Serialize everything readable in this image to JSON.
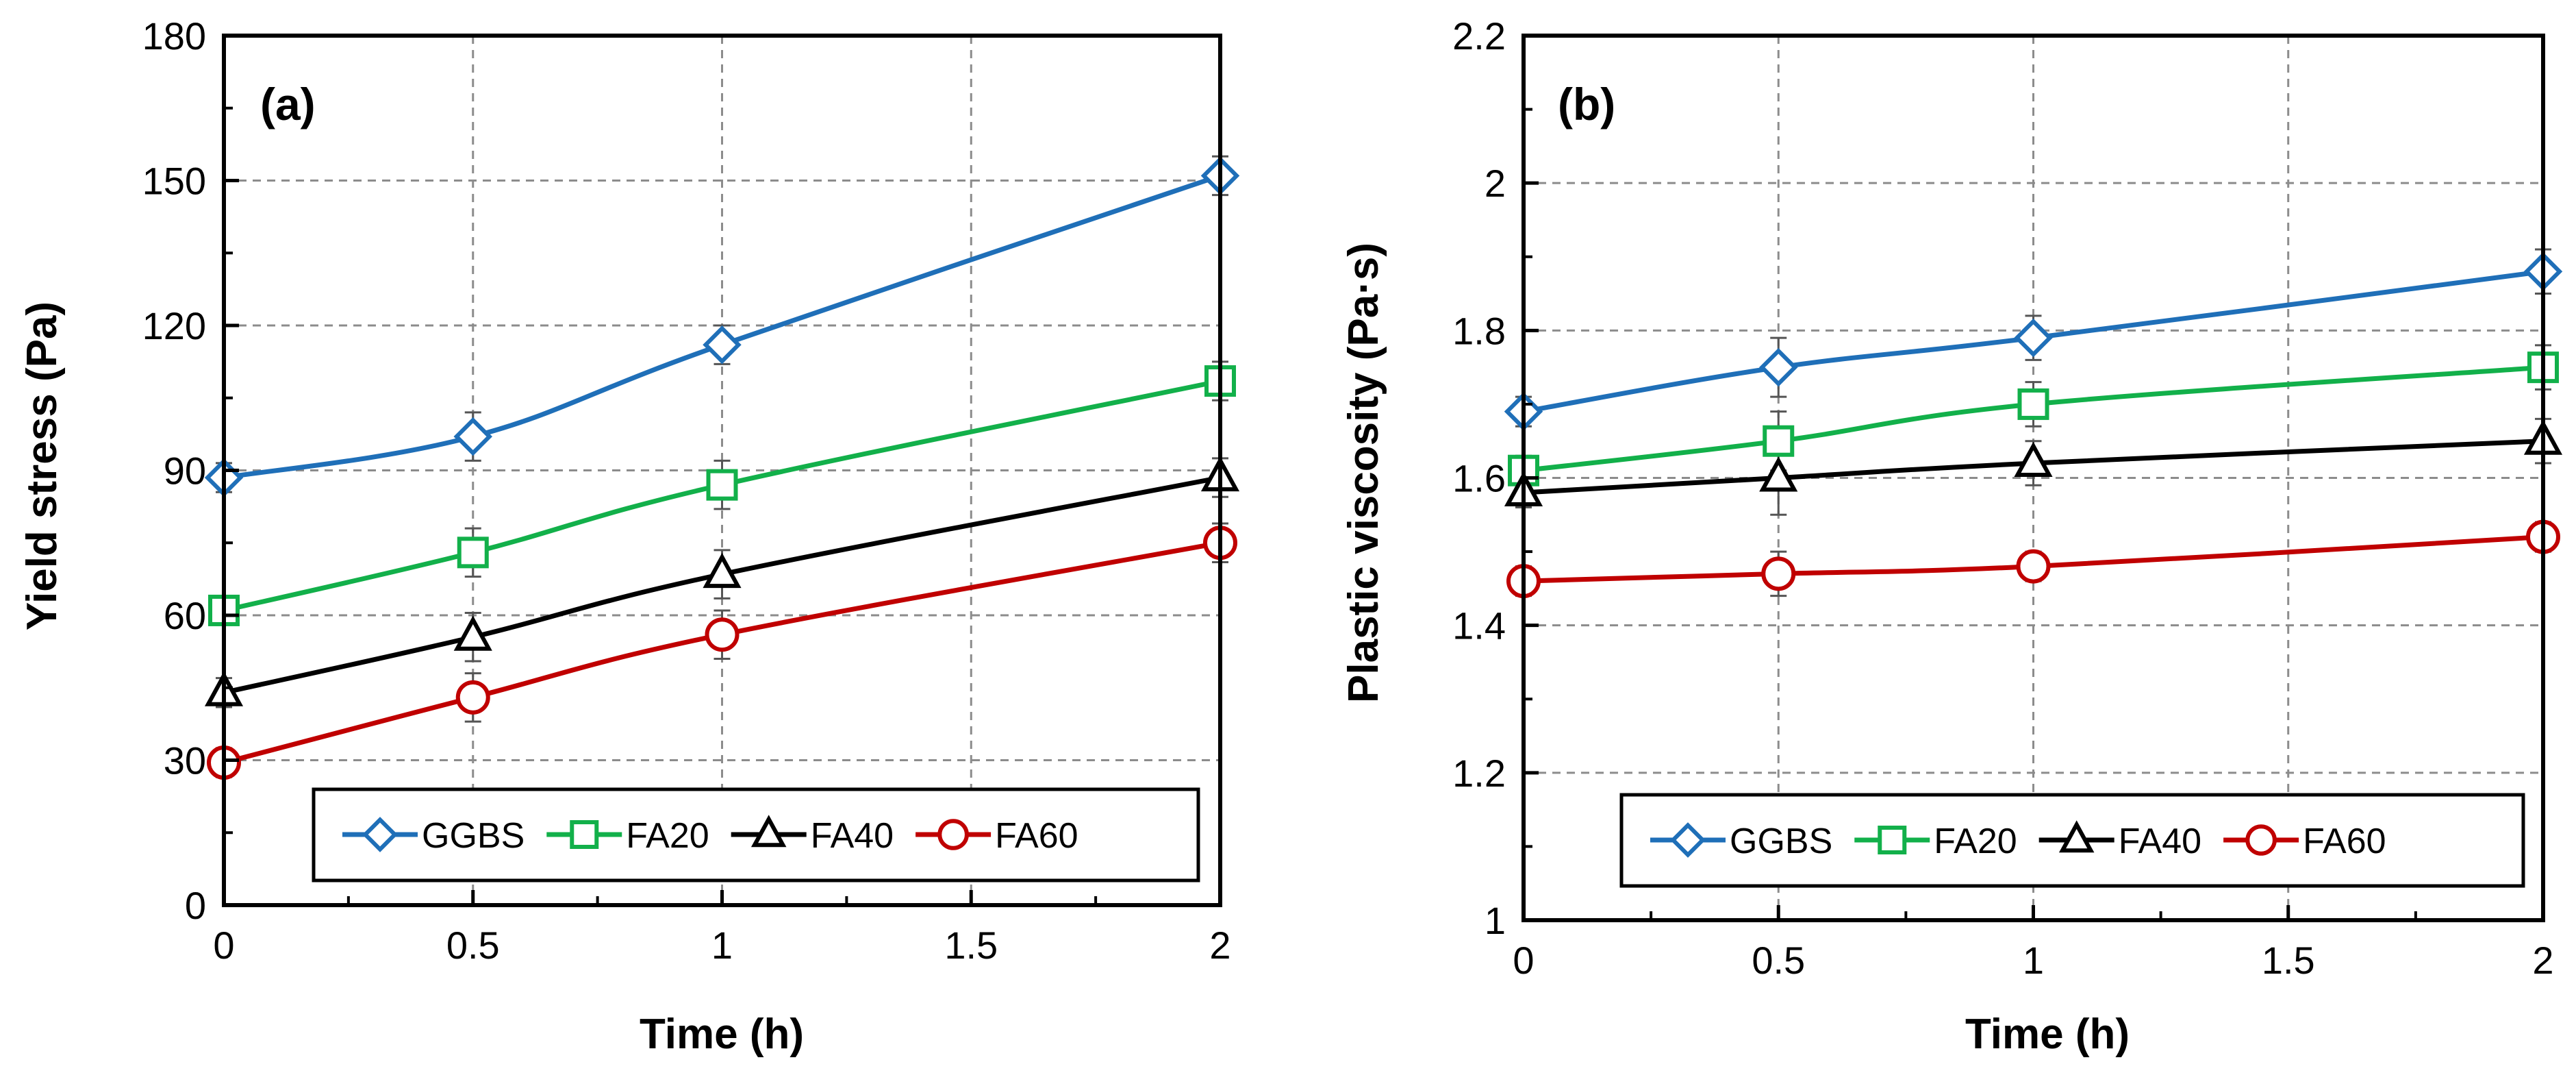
{
  "colors": {
    "GGBS": "#1f6fb8",
    "FA20": "#12b04a",
    "FA40": "#000000",
    "FA60": "#c00000",
    "grid": "#8c8c8c"
  },
  "chart_data": [
    {
      "type": "line",
      "panel_label": "(a)",
      "xlabel": "Time (h)",
      "ylabel": "Yield stress (Pa)",
      "xlim": [
        0,
        2
      ],
      "ylim": [
        0,
        180
      ],
      "xticks": [
        0,
        0.5,
        1,
        1.5,
        2
      ],
      "xtick_labels": [
        "0",
        "0.5",
        "1",
        "1.5",
        "2"
      ],
      "yticks": [
        0,
        30,
        60,
        90,
        120,
        150,
        180
      ],
      "ytick_labels": [
        "0",
        "30",
        "60",
        "90",
        "120",
        "150",
        "180"
      ],
      "grid": true,
      "legend_position": "bottom-right",
      "x": [
        0,
        0.5,
        1,
        2
      ],
      "series": [
        {
          "name": "GGBS",
          "values": [
            88.5,
            97,
            116,
            151
          ],
          "marker": "diamond",
          "error": [
            3,
            5,
            4,
            4
          ]
        },
        {
          "name": "FA20",
          "values": [
            61,
            73,
            87,
            108.5
          ],
          "marker": "square",
          "error": [
            3,
            5,
            5,
            4
          ]
        },
        {
          "name": "FA40",
          "values": [
            44,
            55.5,
            68.5,
            88.5
          ],
          "marker": "triangle",
          "error": [
            3,
            5,
            5,
            4
          ]
        },
        {
          "name": "FA60",
          "values": [
            29.5,
            43,
            56,
            75
          ],
          "marker": "circle",
          "error": [
            3,
            5,
            5,
            4
          ]
        }
      ]
    },
    {
      "type": "line",
      "panel_label": "(b)",
      "xlabel": "Time (h)",
      "ylabel": "Plastic viscosity (Pa·s)",
      "xlim": [
        0,
        2
      ],
      "ylim": [
        1,
        2.2
      ],
      "xticks": [
        0,
        0.5,
        1,
        1.5,
        2
      ],
      "xtick_labels": [
        "0",
        "0.5",
        "1",
        "1.5",
        "2"
      ],
      "yticks": [
        1,
        1.2,
        1.4,
        1.6,
        1.8,
        2,
        2.2
      ],
      "ytick_labels": [
        "1",
        "1.2",
        "1.4",
        "1.6",
        "1.8",
        "2",
        "2.2"
      ],
      "grid": true,
      "legend_position": "bottom-right",
      "x": [
        0,
        0.5,
        1,
        2
      ],
      "series": [
        {
          "name": "GGBS",
          "values": [
            1.69,
            1.75,
            1.79,
            1.88
          ],
          "marker": "diamond",
          "error": [
            0.02,
            0.04,
            0.03,
            0.03
          ]
        },
        {
          "name": "FA20",
          "values": [
            1.61,
            1.65,
            1.7,
            1.75
          ],
          "marker": "square",
          "error": [
            0.02,
            0.04,
            0.03,
            0.03
          ]
        },
        {
          "name": "FA40",
          "values": [
            1.58,
            1.6,
            1.62,
            1.65
          ],
          "marker": "triangle",
          "error": [
            0.02,
            0.05,
            0.03,
            0.03
          ]
        },
        {
          "name": "FA60",
          "values": [
            1.46,
            1.47,
            1.48,
            1.52
          ],
          "marker": "circle",
          "error": [
            0.02,
            0.03,
            0.02,
            0.02
          ]
        }
      ]
    }
  ]
}
